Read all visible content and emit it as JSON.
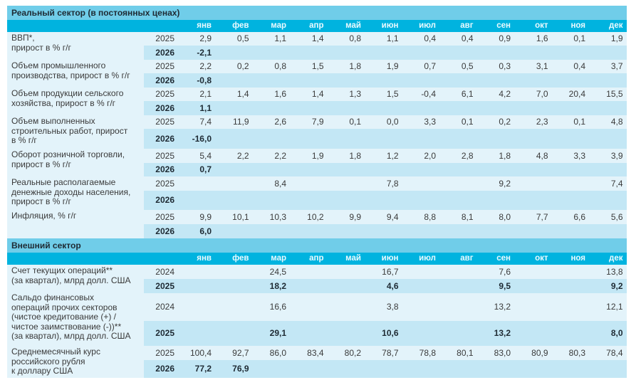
{
  "months": [
    "янв",
    "фев",
    "мар",
    "апр",
    "май",
    "июн",
    "июл",
    "авг",
    "сен",
    "окт",
    "ноя",
    "дек"
  ],
  "sections": [
    {
      "title": "Реальный сектор (в постоянных ценах)",
      "indicators": [
        {
          "label": [
            "ВВП*,",
            "прирост в % г/г"
          ],
          "rows": [
            {
              "year": "2025",
              "bold": false,
              "values": [
                "2,9",
                "0,5",
                "1,1",
                "1,4",
                "0,8",
                "1,1",
                "0,4",
                "0,4",
                "0,9",
                "1,6",
                "0,1",
                "1,9"
              ]
            },
            {
              "year": "2026",
              "bold": true,
              "values": [
                "-2,1",
                "",
                "",
                "",
                "",
                "",
                "",
                "",
                "",
                "",
                "",
                ""
              ]
            }
          ]
        },
        {
          "label": [
            "Объем промышленного",
            "производства, прирост в % г/г"
          ],
          "rows": [
            {
              "year": "2025",
              "bold": false,
              "values": [
                "2,2",
                "0,2",
                "0,8",
                "1,5",
                "1,8",
                "1,9",
                "0,7",
                "0,5",
                "0,3",
                "3,1",
                "0,4",
                "3,7"
              ]
            },
            {
              "year": "2026",
              "bold": true,
              "values": [
                "-0,8",
                "",
                "",
                "",
                "",
                "",
                "",
                "",
                "",
                "",
                "",
                ""
              ]
            }
          ]
        },
        {
          "label": [
            "Объем продукции сельского",
            "хозяйства, прирост в % г/г"
          ],
          "rows": [
            {
              "year": "2025",
              "bold": false,
              "values": [
                "2,1",
                "1,4",
                "1,6",
                "1,4",
                "1,3",
                "1,5",
                "-0,4",
                "6,1",
                "4,2",
                "7,0",
                "20,4",
                "15,5"
              ]
            },
            {
              "year": "2026",
              "bold": true,
              "values": [
                "1,1",
                "",
                "",
                "",
                "",
                "",
                "",
                "",
                "",
                "",
                "",
                ""
              ]
            }
          ]
        },
        {
          "label": [
            "Объем выполненных",
            "строительных работ, прирост",
            "в % г/г"
          ],
          "rows": [
            {
              "year": "2025",
              "bold": false,
              "values": [
                "7,4",
                "11,9",
                "2,6",
                "7,9",
                "0,1",
                "0,0",
                "3,3",
                "0,1",
                "0,2",
                "2,3",
                "0,1",
                "4,8"
              ]
            },
            {
              "year": "2026",
              "bold": true,
              "values": [
                "-16,0",
                "",
                "",
                "",
                "",
                "",
                "",
                "",
                "",
                "",
                "",
                ""
              ]
            }
          ]
        },
        {
          "label": [
            "Оборот розничной торговли,",
            "прирост в % г/г"
          ],
          "rows": [
            {
              "year": "2025",
              "bold": false,
              "values": [
                "5,4",
                "2,2",
                "2,2",
                "1,9",
                "1,8",
                "1,2",
                "2,0",
                "2,8",
                "1,8",
                "4,8",
                "3,3",
                "3,9"
              ]
            },
            {
              "year": "2026",
              "bold": true,
              "values": [
                "0,7",
                "",
                "",
                "",
                "",
                "",
                "",
                "",
                "",
                "",
                "",
                ""
              ]
            }
          ]
        },
        {
          "label": [
            "Реальные располагаемые",
            "денежные доходы населения,",
            "прирост в % г/г"
          ],
          "rows": [
            {
              "year": "2025",
              "bold": false,
              "values": [
                "",
                "",
                "8,4",
                "",
                "",
                "7,8",
                "",
                "",
                "9,2",
                "",
                "",
                "7,4"
              ]
            },
            {
              "year": "2026",
              "bold": true,
              "values": [
                "",
                "",
                "",
                "",
                "",
                "",
                "",
                "",
                "",
                "",
                "",
                ""
              ]
            }
          ]
        },
        {
          "label": [
            "Инфляция, % г/г"
          ],
          "rows": [
            {
              "year": "2025",
              "bold": false,
              "values": [
                "9,9",
                "10,1",
                "10,3",
                "10,2",
                "9,9",
                "9,4",
                "8,8",
                "8,1",
                "8,0",
                "7,7",
                "6,6",
                "5,6"
              ]
            },
            {
              "year": "2026",
              "bold": true,
              "values": [
                "6,0",
                "",
                "",
                "",
                "",
                "",
                "",
                "",
                "",
                "",
                "",
                ""
              ]
            }
          ]
        }
      ]
    },
    {
      "title": "Внешний сектор",
      "indicators": [
        {
          "label": [
            "Счет текущих операций**",
            "(за квартал), млрд долл. США"
          ],
          "rows": [
            {
              "year": "2024",
              "bold": false,
              "values": [
                "",
                "",
                "24,5",
                "",
                "",
                "16,7",
                "",
                "",
                "7,6",
                "",
                "",
                "13,8"
              ]
            },
            {
              "year": "2025",
              "bold": true,
              "values": [
                "",
                "",
                "18,2",
                "",
                "",
                "4,6",
                "",
                "",
                "9,5",
                "",
                "",
                "9,2"
              ]
            }
          ]
        },
        {
          "label": [
            "Сальдо финансовых",
            "операций прочих секторов",
            "(чистое кредитование (+) /",
            "чистое заимствование (-))**",
            "(за квартал), млрд долл. США"
          ],
          "rows": [
            {
              "year": "2024",
              "bold": false,
              "values": [
                "",
                "",
                "16,6",
                "",
                "",
                "3,8",
                "",
                "",
                "13,2",
                "",
                "",
                "12,1"
              ]
            },
            {
              "year": "2025",
              "bold": true,
              "values": [
                "",
                "",
                "29,1",
                "",
                "",
                "10,6",
                "",
                "",
                "13,2",
                "",
                "",
                "8,0"
              ]
            }
          ]
        },
        {
          "label": [
            "Среднемесячный курс",
            "российского рубля",
            "к доллару США"
          ],
          "rows": [
            {
              "year": "2025",
              "bold": false,
              "values": [
                "100,4",
                "92,7",
                "86,0",
                "83,4",
                "80,2",
                "78,7",
                "78,8",
                "80,1",
                "83,0",
                "80,9",
                "80,3",
                "78,4"
              ]
            },
            {
              "year": "2026",
              "bold": true,
              "values": [
                "77,2",
                "76,9",
                "",
                "",
                "",
                "",
                "",
                "",
                "",
                "",
                "",
                ""
              ]
            }
          ]
        }
      ]
    }
  ]
}
